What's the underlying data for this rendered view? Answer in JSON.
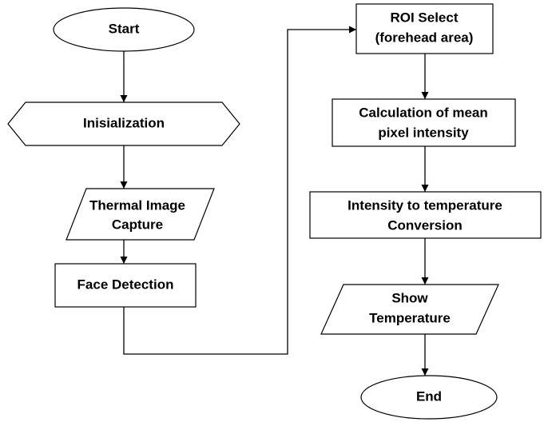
{
  "nodes": [
    {
      "lines": [
        "Start"
      ]
    },
    {
      "lines": [
        "Inisialization"
      ]
    },
    {
      "lines": [
        "Thermal Image",
        "Capture"
      ]
    },
    {
      "lines": [
        "Face Detection"
      ]
    },
    {
      "lines": [
        "ROI Select",
        "(forehead area)"
      ]
    },
    {
      "lines": [
        "Calculation of mean",
        "pixel intensity"
      ]
    },
    {
      "lines": [
        "Intensity to temperature",
        "Conversion"
      ]
    },
    {
      "lines": [
        "Show",
        "Temperature"
      ]
    },
    {
      "lines": [
        "End"
      ]
    }
  ]
}
